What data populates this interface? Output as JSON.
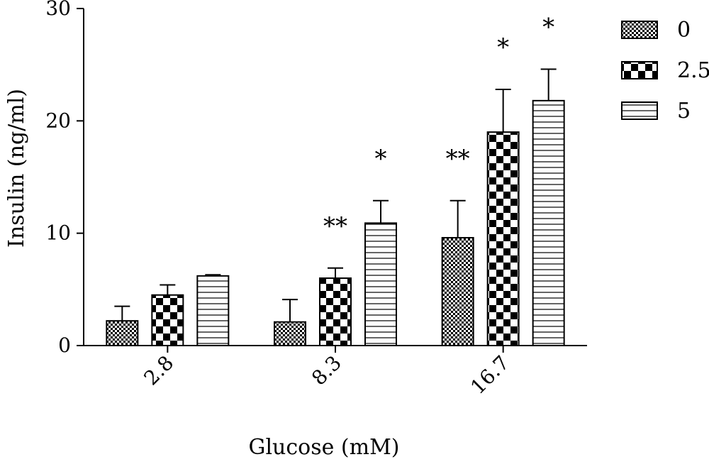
{
  "chart_data": {
    "type": "bar",
    "title": "",
    "xlabel": "Glucose (mM)",
    "ylabel": "Insulin (ng/ml)",
    "ylim": [
      0,
      30
    ],
    "yticks": [
      "0",
      "10",
      "20",
      "30"
    ],
    "categories": [
      "2.8",
      "8.3",
      "16.7"
    ],
    "series": [
      {
        "name": "0",
        "pattern": "fine-check",
        "values": [
          2.2,
          2.1,
          9.6
        ],
        "errors": [
          1.3,
          2.0,
          3.3
        ]
      },
      {
        "name": "2.5",
        "pattern": "coarse-check",
        "values": [
          4.5,
          6.0,
          19.0
        ],
        "errors": [
          0.9,
          0.9,
          3.8
        ]
      },
      {
        "name": "5",
        "pattern": "horizontal-lines",
        "values": [
          6.2,
          10.9,
          21.8
        ],
        "errors": [
          0.1,
          2.0,
          2.8
        ]
      }
    ],
    "significance": [
      [
        "",
        "",
        "**"
      ],
      [
        "",
        "**",
        "*"
      ],
      [
        "",
        "*",
        "*"
      ]
    ],
    "legend_position": "top-right",
    "grid": false,
    "colors": {
      "ink": "#000000",
      "background": "#ffffff"
    }
  }
}
